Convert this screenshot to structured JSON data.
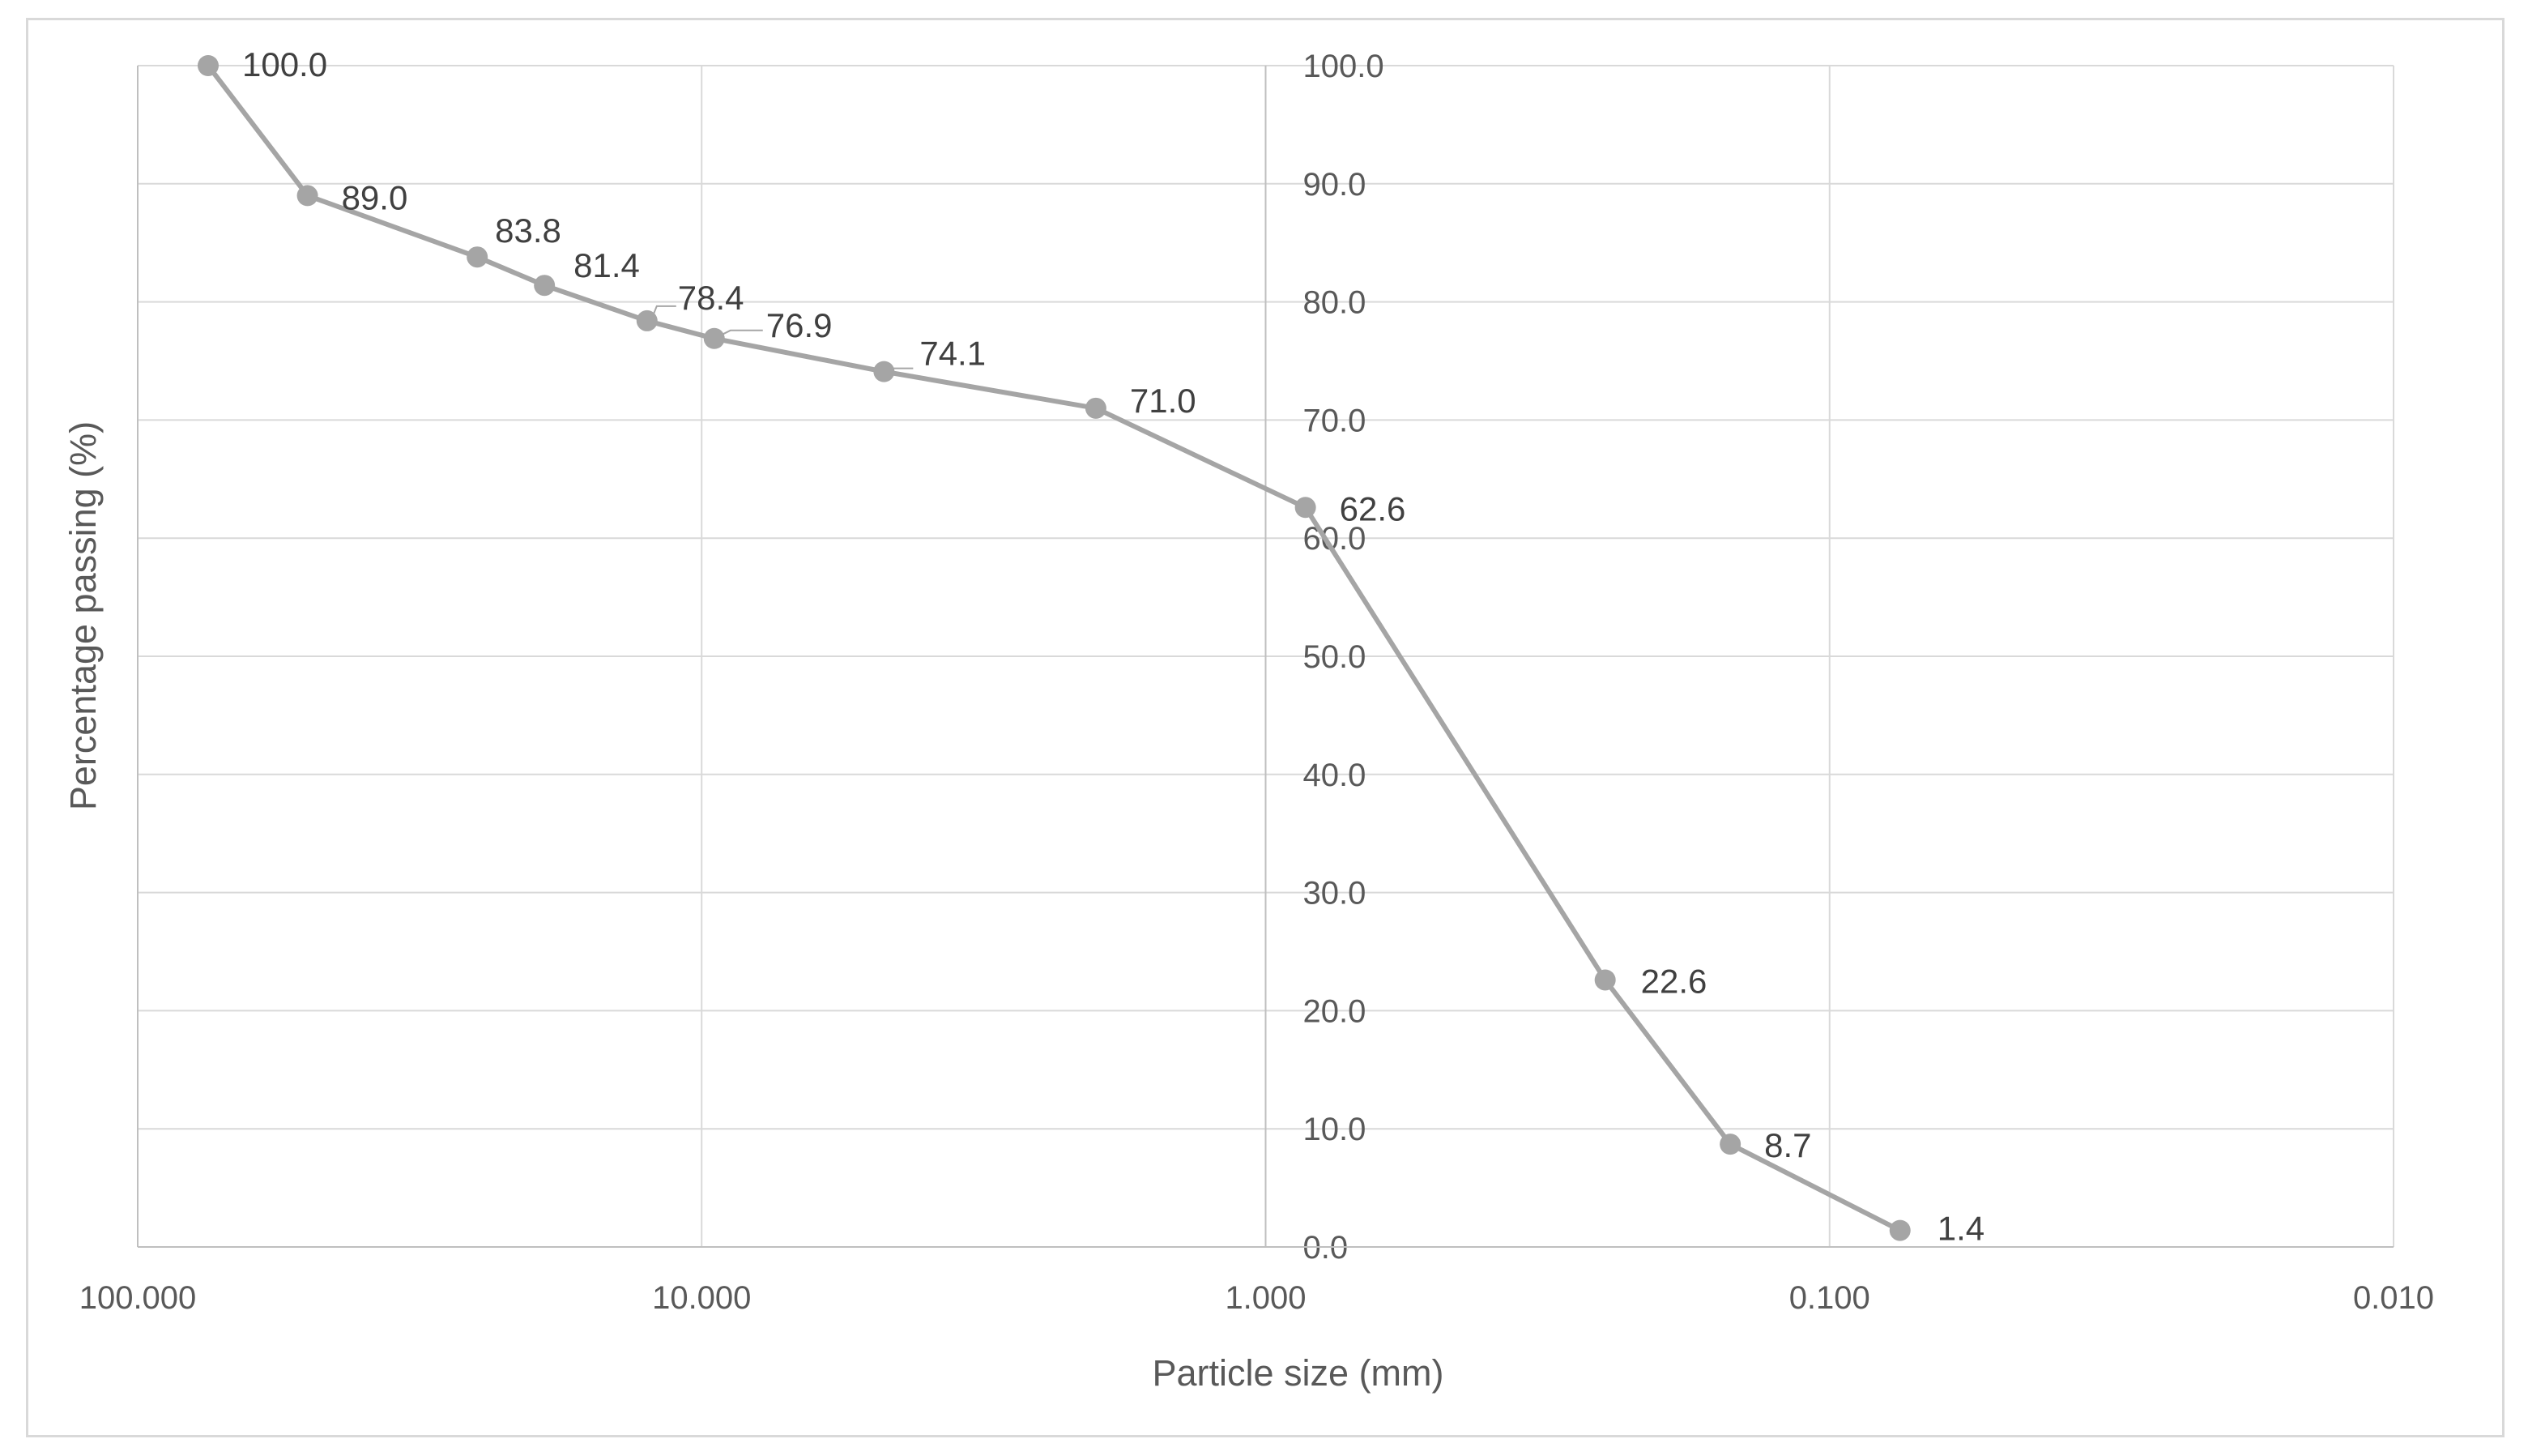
{
  "chart_data": {
    "type": "line",
    "title": "",
    "xlabel": "Particle size (mm)",
    "ylabel": "Percentage passing (%)",
    "x_scale": "log",
    "x_reversed": true,
    "xlim": [
      100,
      0.01
    ],
    "ylim": [
      0,
      100
    ],
    "grid": true,
    "legend": "none",
    "color": "#a5a5a5",
    "x_ticks": [
      "100.000",
      "10.000",
      "1.000",
      "0.100",
      "0.010"
    ],
    "y_ticks": [
      "0.0",
      "10.0",
      "20.0",
      "30.0",
      "40.0",
      "50.0",
      "60.0",
      "70.0",
      "80.0",
      "90.0",
      "100.0"
    ],
    "series": [
      {
        "x": [
          75,
          50,
          25,
          19,
          12.5,
          9.5,
          4.75,
          2,
          0.85,
          0.25,
          0.15,
          0.075
        ],
        "y": [
          100.0,
          89.0,
          83.8,
          81.4,
          78.4,
          76.9,
          74.1,
          71.0,
          62.6,
          22.6,
          8.7,
          1.4
        ],
        "labels": [
          "100.0",
          "89.0",
          "83.8",
          "81.4",
          "78.4",
          "76.9",
          "74.1",
          "71.0",
          "62.6",
          "22.6",
          "8.7",
          "1.4"
        ]
      }
    ]
  }
}
